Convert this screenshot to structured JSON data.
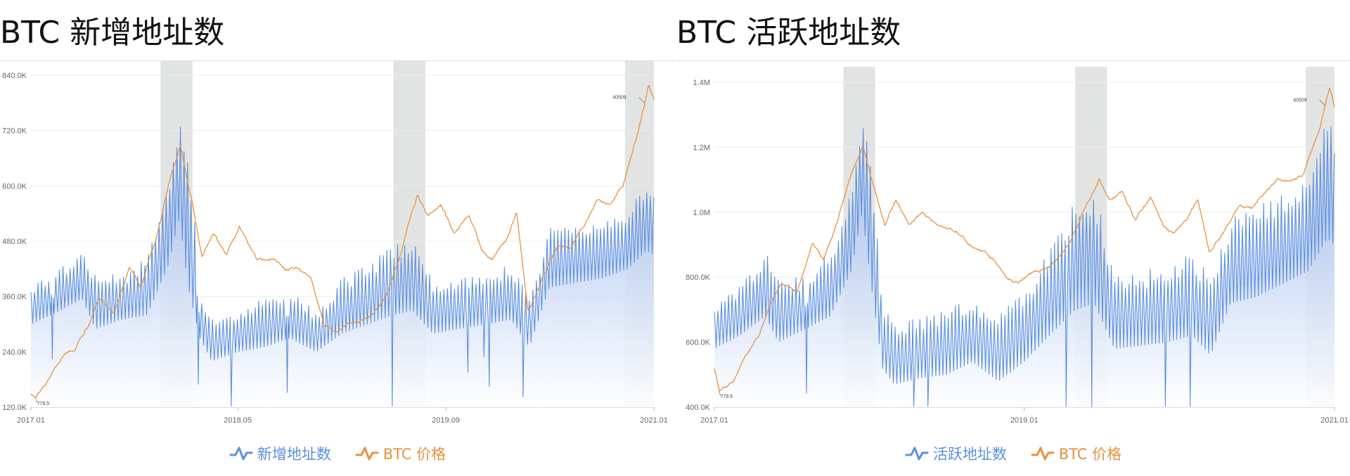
{
  "colors": {
    "addresses": "#5b8fe0",
    "price": "#e8913f",
    "highlight": "#e2e4e3",
    "grid": "#ececec"
  },
  "chart_data": [
    {
      "type": "line",
      "title": "BTC 新增地址数",
      "xlabel": "",
      "ylabel": "",
      "x_ticks": [
        "2017.01",
        "2018.05",
        "2019.09",
        "2021.01"
      ],
      "y_ticks": [
        "120.0K",
        "240.0K",
        "360.0K",
        "480.0K",
        "600.0K",
        "720.0K",
        "840.0K"
      ],
      "ylim": [
        120000,
        840000
      ],
      "xlim": [
        "2017-01-01",
        "2021-01-01"
      ],
      "grid": true,
      "legend": "bottom-center",
      "highlight_periods": [
        [
          "2017-11-01",
          "2018-01-15"
        ],
        [
          "2019-05-01",
          "2019-07-15"
        ],
        [
          "2020-10-25",
          "2021-01-01"
        ]
      ],
      "annotations": [
        {
          "text": "40509",
          "x": "2020-12-10",
          "series": "BTC 价格"
        },
        {
          "text": "779.5",
          "x": "2017-01-12",
          "series": "BTC 价格"
        }
      ],
      "series": [
        {
          "name": "新增地址数",
          "style": "area",
          "x": [
            "2017-01-01",
            "2017-03-01",
            "2017-05-01",
            "2017-06-01",
            "2017-08-01",
            "2017-10-01",
            "2017-11-20",
            "2017-12-15",
            "2018-01-05",
            "2018-02-01",
            "2018-03-01",
            "2018-05-01",
            "2018-07-01",
            "2018-09-01",
            "2018-11-01",
            "2019-01-01",
            "2019-03-01",
            "2019-05-01",
            "2019-06-15",
            "2019-08-01",
            "2019-10-01",
            "2019-12-01",
            "2020-02-01",
            "2020-03-15",
            "2020-05-01",
            "2020-07-01",
            "2020-09-01",
            "2020-11-01",
            "2020-12-15",
            "2021-01-01"
          ],
          "values": [
            330000,
            360000,
            400000,
            350000,
            360000,
            380000,
            520000,
            650000,
            560000,
            320000,
            260000,
            280000,
            300000,
            320000,
            280000,
            340000,
            370000,
            400000,
            420000,
            340000,
            340000,
            350000,
            370000,
            300000,
            440000,
            460000,
            470000,
            480000,
            560000,
            540000
          ],
          "range": [
            [
              300000,
              385000
            ],
            [
              325000,
              415000
            ],
            [
              355000,
              455000
            ],
            [
              290000,
              420000
            ],
            [
              310000,
              405000
            ],
            [
              320000,
              450000
            ],
            [
              430000,
              620000
            ],
            [
              530000,
              750000
            ],
            [
              380000,
              700000
            ],
            [
              270000,
              380000
            ],
            [
              220000,
              310000
            ],
            [
              240000,
              330000
            ],
            [
              250000,
              355000
            ],
            [
              270000,
              370000
            ],
            [
              240000,
              330000
            ],
            [
              280000,
              400000
            ],
            [
              300000,
              430000
            ],
            [
              320000,
              480000
            ],
            [
              330000,
              480000
            ],
            [
              280000,
              400000
            ],
            [
              290000,
              400000
            ],
            [
              300000,
              410000
            ],
            [
              310000,
              430000
            ],
            [
              250000,
              360000
            ],
            [
              380000,
              510000
            ],
            [
              390000,
              520000
            ],
            [
              400000,
              525000
            ],
            [
              420000,
              540000
            ],
            [
              460000,
              620000
            ],
            [
              450000,
              600000
            ]
          ]
        },
        {
          "name": "BTC 价格",
          "style": "line",
          "x": [
            "2017-01-01",
            "2017-01-12",
            "2017-02-15",
            "2017-03-15",
            "2017-04-15",
            "2017-05-15",
            "2017-06-10",
            "2017-07-15",
            "2017-08-20",
            "2017-09-15",
            "2017-10-20",
            "2017-11-20",
            "2017-12-17",
            "2018-01-15",
            "2018-02-06",
            "2018-03-05",
            "2018-04-05",
            "2018-05-05",
            "2018-06-15",
            "2018-07-25",
            "2018-08-20",
            "2018-09-20",
            "2018-10-20",
            "2018-11-20",
            "2018-12-15",
            "2019-01-15",
            "2019-03-01",
            "2019-04-15",
            "2019-05-20",
            "2019-06-26",
            "2019-07-20",
            "2019-08-20",
            "2019-09-20",
            "2019-10-26",
            "2019-11-25",
            "2019-12-18",
            "2020-01-20",
            "2020-02-14",
            "2020-03-12",
            "2020-04-15",
            "2020-05-20",
            "2020-06-20",
            "2020-07-25",
            "2020-08-20",
            "2020-09-20",
            "2020-10-20",
            "2020-11-25",
            "2020-12-20",
            "2021-01-01"
          ],
          "values": [
            150000,
            140000,
            180000,
            230000,
            250000,
            300000,
            360000,
            320000,
            420000,
            380000,
            480000,
            600000,
            690000,
            560000,
            450000,
            500000,
            450000,
            510000,
            440000,
            440000,
            420000,
            420000,
            400000,
            300000,
            280000,
            300000,
            310000,
            360000,
            460000,
            580000,
            540000,
            560000,
            500000,
            540000,
            460000,
            440000,
            480000,
            540000,
            330000,
            400000,
            470000,
            470000,
            520000,
            570000,
            560000,
            600000,
            720000,
            820000,
            790000
          ]
        }
      ]
    },
    {
      "type": "line",
      "title": "BTC 活跃地址数",
      "xlabel": "",
      "ylabel": "",
      "x_ticks": [
        "2017.01",
        "2019.01",
        "2021.01"
      ],
      "y_ticks": [
        "400.0K",
        "600.0K",
        "800.0K",
        "1.0M",
        "1.2M",
        "1.4M"
      ],
      "ylim": [
        400000,
        1400000
      ],
      "xlim": [
        "2017-01-01",
        "2021-01-01"
      ],
      "grid": true,
      "legend": "bottom-center",
      "highlight_periods": [
        [
          "2017-11-01",
          "2018-01-15"
        ],
        [
          "2019-05-01",
          "2019-07-15"
        ],
        [
          "2020-10-25",
          "2021-01-01"
        ]
      ],
      "annotations": [
        {
          "text": "40509",
          "x": "2020-12-10",
          "series": "BTC 价格"
        },
        {
          "text": "779.5",
          "x": "2017-01-12",
          "series": "BTC 价格"
        }
      ],
      "series": [
        {
          "name": "活跃地址数",
          "style": "area",
          "x": [
            "2017-01-01",
            "2017-03-01",
            "2017-05-01",
            "2017-06-01",
            "2017-08-01",
            "2017-10-01",
            "2017-11-20",
            "2017-12-15",
            "2018-01-05",
            "2018-02-01",
            "2018-03-01",
            "2018-05-01",
            "2018-07-01",
            "2018-09-01",
            "2018-11-01",
            "2019-01-01",
            "2019-03-01",
            "2019-05-01",
            "2019-06-15",
            "2019-08-01",
            "2019-10-01",
            "2019-12-01",
            "2020-02-01",
            "2020-03-15",
            "2020-05-01",
            "2020-07-01",
            "2020-09-01",
            "2020-11-01",
            "2020-12-15",
            "2021-01-01"
          ],
          "values": [
            650000,
            700000,
            780000,
            700000,
            720000,
            780000,
            950000,
            1150000,
            1000000,
            620000,
            560000,
            580000,
            600000,
            640000,
            580000,
            650000,
            750000,
            880000,
            900000,
            700000,
            700000,
            720000,
            760000,
            680000,
            850000,
            880000,
            920000,
            980000,
            1100000,
            1080000
          ],
          "range": [
            [
              580000,
              720000
            ],
            [
              620000,
              770000
            ],
            [
              680000,
              880000
            ],
            [
              600000,
              800000
            ],
            [
              640000,
              800000
            ],
            [
              680000,
              880000
            ],
            [
              820000,
              1080000
            ],
            [
              1000000,
              1300000
            ],
            [
              780000,
              1180000
            ],
            [
              520000,
              720000
            ],
            [
              470000,
              650000
            ],
            [
              490000,
              680000
            ],
            [
              500000,
              700000
            ],
            [
              540000,
              740000
            ],
            [
              480000,
              680000
            ],
            [
              540000,
              760000
            ],
            [
              620000,
              880000
            ],
            [
              700000,
              1050000
            ],
            [
              720000,
              1080000
            ],
            [
              580000,
              820000
            ],
            [
              590000,
              820000
            ],
            [
              600000,
              840000
            ],
            [
              620000,
              880000
            ],
            [
              560000,
              800000
            ],
            [
              720000,
              980000
            ],
            [
              740000,
              1020000
            ],
            [
              780000,
              1060000
            ],
            [
              820000,
              1120000
            ],
            [
              920000,
              1300000
            ],
            [
              900000,
              1250000
            ]
          ]
        },
        {
          "name": "BTC 价格",
          "style": "line",
          "x": [
            "2017-01-01",
            "2017-01-12",
            "2017-02-15",
            "2017-03-15",
            "2017-04-15",
            "2017-05-15",
            "2017-06-10",
            "2017-07-15",
            "2017-08-20",
            "2017-09-15",
            "2017-10-20",
            "2017-11-20",
            "2017-12-17",
            "2018-01-15",
            "2018-02-06",
            "2018-03-05",
            "2018-04-05",
            "2018-05-05",
            "2018-06-15",
            "2018-07-25",
            "2018-08-20",
            "2018-09-20",
            "2018-10-20",
            "2018-11-20",
            "2018-12-15",
            "2019-01-15",
            "2019-03-01",
            "2019-04-15",
            "2019-05-20",
            "2019-06-26",
            "2019-07-20",
            "2019-08-20",
            "2019-09-20",
            "2019-10-26",
            "2019-11-25",
            "2019-12-18",
            "2020-01-20",
            "2020-02-14",
            "2020-03-12",
            "2020-04-15",
            "2020-05-20",
            "2020-06-20",
            "2020-07-25",
            "2020-08-20",
            "2020-09-20",
            "2020-10-20",
            "2020-11-25",
            "2020-12-20",
            "2021-01-01"
          ],
          "values": [
            520000,
            450000,
            480000,
            560000,
            620000,
            720000,
            780000,
            750000,
            900000,
            850000,
            980000,
            1120000,
            1200000,
            1060000,
            960000,
            1040000,
            960000,
            1000000,
            950000,
            940000,
            900000,
            880000,
            850000,
            800000,
            780000,
            810000,
            830000,
            900000,
            1000000,
            1100000,
            1040000,
            1060000,
            980000,
            1040000,
            960000,
            930000,
            980000,
            1040000,
            880000,
            940000,
            1020000,
            1010000,
            1060000,
            1100000,
            1090000,
            1120000,
            1250000,
            1380000,
            1320000
          ]
        }
      ]
    }
  ]
}
